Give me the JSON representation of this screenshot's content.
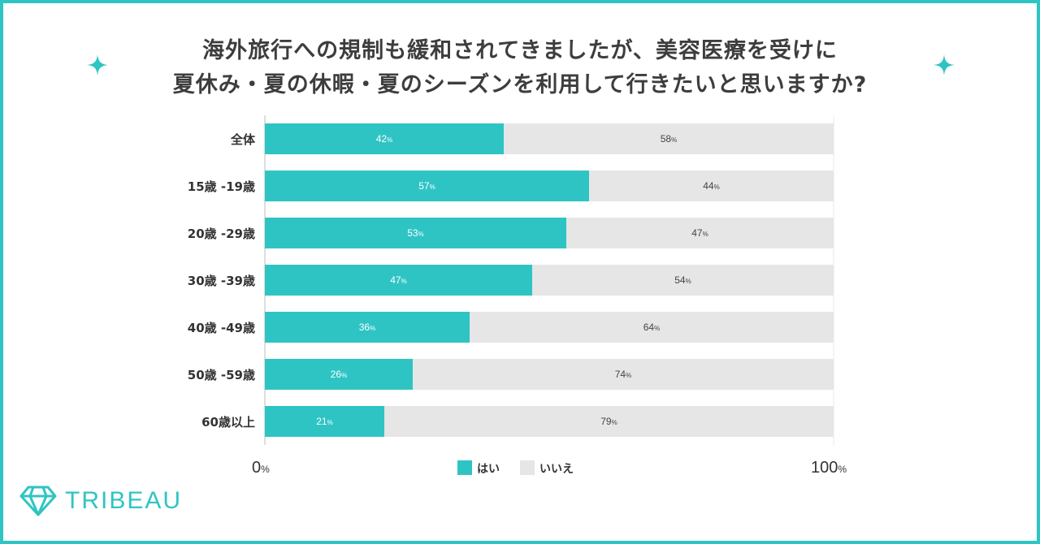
{
  "title": {
    "line1": "海外旅行への規制も緩和されてきましたが、美容医療を受けに",
    "line2": "夏休み・夏の休暇・夏のシーズンを利用して行きたいと思いますか?"
  },
  "brand": {
    "name": "TRIBEAU",
    "icon": "diamond-logo-icon"
  },
  "decorations": {
    "icon": "sparkle-icon"
  },
  "colors": {
    "accent": "#2fc4c4",
    "yes": "#2fc4c4",
    "no": "#e6e6e6",
    "title": "#3d3d3d",
    "text": "#333333"
  },
  "chart_data": {
    "type": "bar",
    "orientation": "horizontal",
    "stacked": true,
    "title": "海外旅行への規制も緩和されてきましたが、美容医療を受けに夏休み・夏の休暇・夏のシーズンを利用して行きたいと思いますか?",
    "categories": [
      "全体",
      "15歳 -19歳",
      "20歳 -29歳",
      "30歳 -39歳",
      "40歳 -49歳",
      "50歳 -59歳",
      "60歳以上"
    ],
    "series": [
      {
        "name": "はい",
        "values": [
          42,
          57,
          53,
          47,
          36,
          26,
          21
        ]
      },
      {
        "name": "いいえ",
        "values": [
          58,
          44,
          47,
          54,
          64,
          74,
          79
        ]
      }
    ],
    "value_suffix": "%",
    "xlim": [
      0,
      100
    ],
    "x_tick_labels": [
      "0",
      "100"
    ],
    "tick_suffix": "%",
    "legend": [
      "はい",
      "いいえ"
    ],
    "legend_position": "bottom-center"
  }
}
